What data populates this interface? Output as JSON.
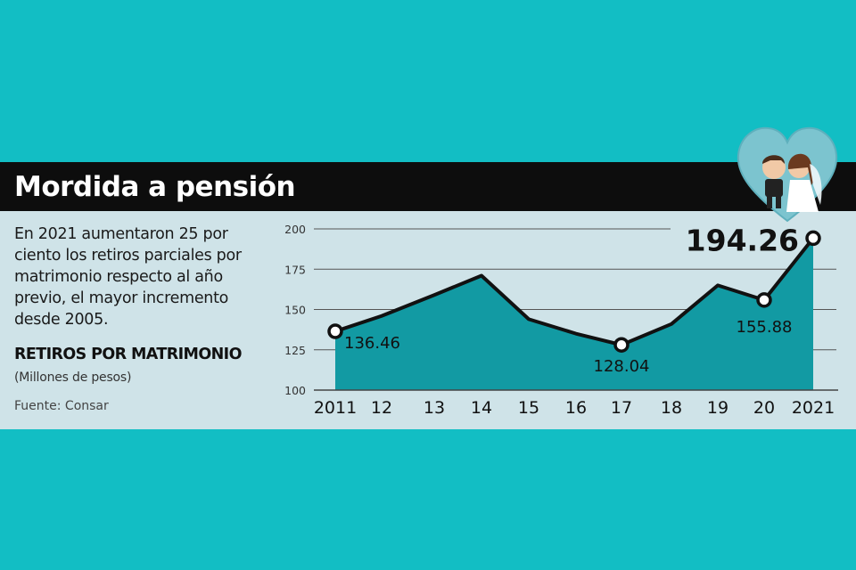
{
  "header": {
    "title": "Mordida a pensión"
  },
  "description": "En 2021 aumentaron 25 por ciento los retiros parciales por matrimonio respecto al año previo, el mayor incremento desde 2005.",
  "chart_data": {
    "type": "area",
    "title": "RETIROS POR MATRIMONIO",
    "subtitle": "(Millones de pesos)",
    "source": "Fuente: Consar",
    "categories": [
      "2011",
      "12",
      "13",
      "14",
      "15",
      "16",
      "17",
      "18",
      "19",
      "20",
      "2021"
    ],
    "values": [
      136.46,
      146,
      159,
      171,
      144,
      135,
      128.04,
      141,
      165,
      155.88,
      194.26
    ],
    "yticks": [
      100,
      125,
      150,
      175,
      200
    ],
    "ylim": [
      100,
      200
    ],
    "grid": true,
    "annotations": [
      {
        "category": "2011",
        "label": "136.46"
      },
      {
        "category": "17",
        "label": "128.04"
      },
      {
        "category": "20",
        "label": "155.88"
      },
      {
        "category": "2021",
        "label": "194.26"
      }
    ]
  },
  "colors": {
    "background": "#12bec4",
    "panel": "#cfe3e8",
    "area": "#129aa3",
    "line": "#111111",
    "titlebar": "#0d0d0d"
  },
  "icons": {
    "heart": "wedding-couple-heart-icon"
  }
}
